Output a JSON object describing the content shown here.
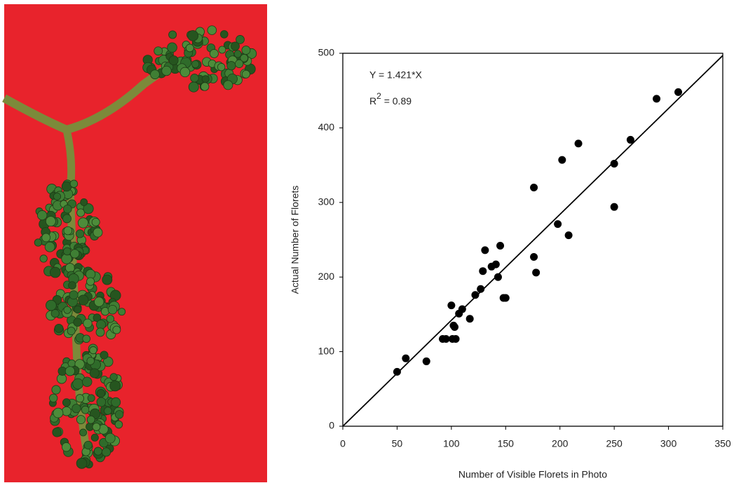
{
  "chart_data": {
    "type": "scatter",
    "x_label": "Number of Visible Florets in Photo",
    "y_label": "Actual Number of Florets",
    "annotation_equation": "Y = 1.421*X",
    "annotation_r2": {
      "base": "R",
      "sup": "2",
      "rest": " = 0.89"
    },
    "color": "#000000",
    "x": [
      50,
      58,
      77,
      92,
      95,
      101,
      104,
      100,
      102,
      103,
      107,
      110,
      117,
      122,
      127,
      129,
      131,
      137,
      141,
      143,
      145,
      148,
      150,
      176,
      176,
      178,
      198,
      202,
      208,
      217,
      250,
      250,
      265,
      289,
      309
    ],
    "values": [
      73,
      91,
      87,
      117,
      117,
      117,
      117,
      162,
      135,
      133,
      151,
      157,
      144,
      176,
      184,
      208,
      236,
      214,
      217,
      200,
      242,
      172,
      172,
      227,
      320,
      206,
      271,
      357,
      256,
      379,
      352,
      294,
      384,
      439,
      448
    ],
    "fit_line": {
      "x": [
        0,
        350
      ],
      "y": [
        0,
        497
      ]
    },
    "xlim": [
      0,
      350
    ],
    "ylim": [
      0,
      500
    ],
    "xticks": [
      0,
      50,
      100,
      150,
      200,
      250,
      300,
      350
    ],
    "yticks": [
      0,
      100,
      200,
      300,
      400,
      500
    ]
  }
}
